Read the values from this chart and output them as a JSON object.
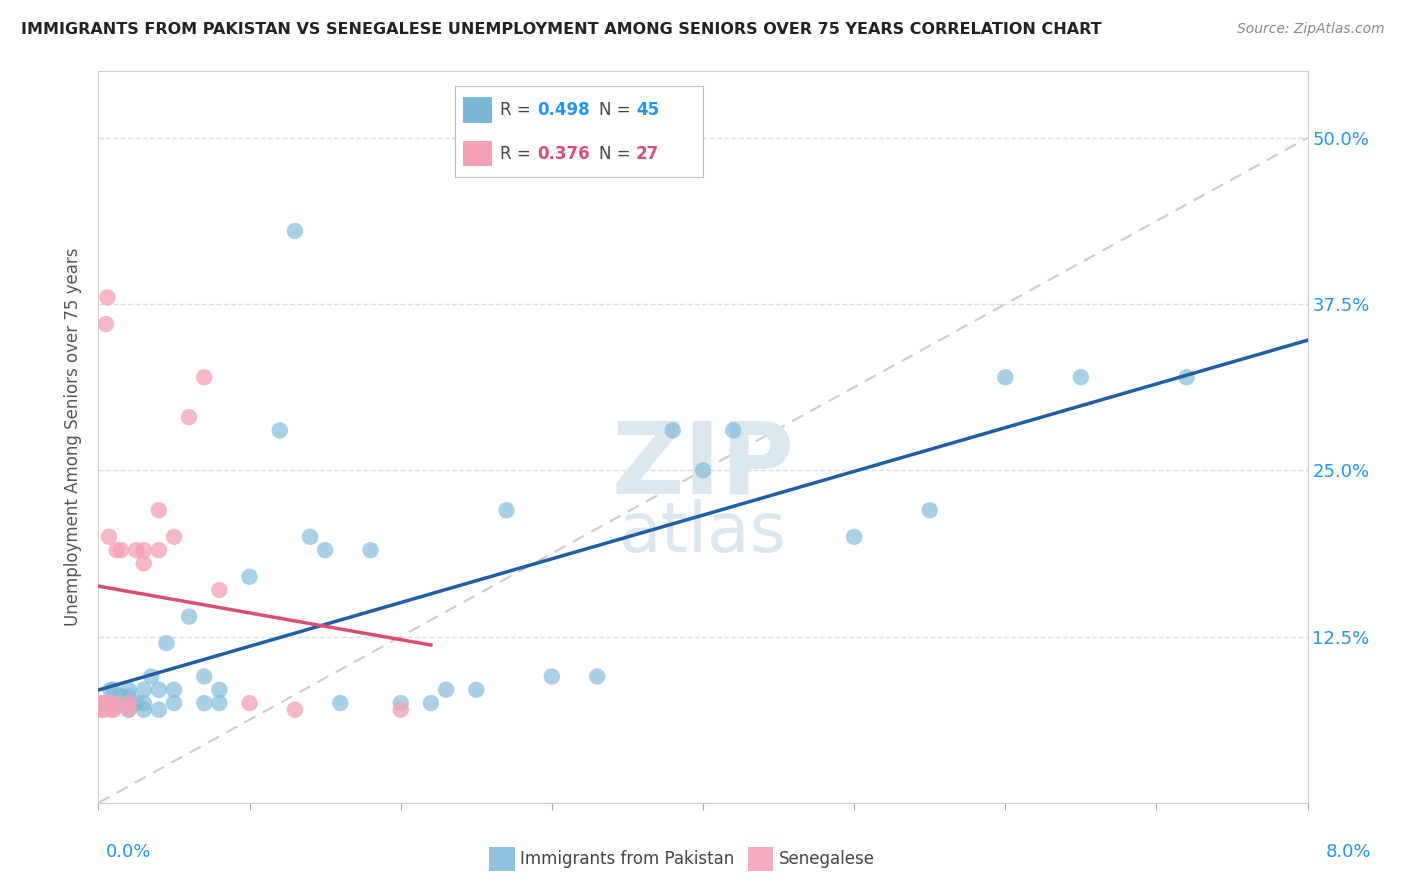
{
  "title": "IMMIGRANTS FROM PAKISTAN VS SENEGALESE UNEMPLOYMENT AMONG SENIORS OVER 75 YEARS CORRELATION CHART",
  "source": "Source: ZipAtlas.com",
  "ylabel": "Unemployment Among Seniors over 75 years",
  "xlim": [
    0.0,
    0.08
  ],
  "ylim": [
    0.0,
    0.55
  ],
  "yticks": [
    0.0,
    0.125,
    0.25,
    0.375,
    0.5
  ],
  "ytick_labels": [
    "",
    "12.5%",
    "25.0%",
    "37.5%",
    "50.0%"
  ],
  "blue_color": "#7ab8d9",
  "pink_color": "#f4a0b5",
  "blue_line_color": "#1f5fa6",
  "pink_line_color": "#d94f70",
  "diag_line_color": "#cccccc",
  "pakistan_x": [
    0.0005,
    0.0008,
    0.001,
    0.001,
    0.0015,
    0.002,
    0.002,
    0.002,
    0.0025,
    0.003,
    0.003,
    0.003,
    0.0035,
    0.004,
    0.004,
    0.0045,
    0.005,
    0.005,
    0.006,
    0.007,
    0.007,
    0.008,
    0.008,
    0.01,
    0.012,
    0.013,
    0.014,
    0.015,
    0.016,
    0.018,
    0.02,
    0.022,
    0.023,
    0.025,
    0.027,
    0.03,
    0.033,
    0.038,
    0.04,
    0.042,
    0.05,
    0.055,
    0.06,
    0.065,
    0.072
  ],
  "pakistan_y": [
    0.075,
    0.085,
    0.075,
    0.085,
    0.08,
    0.07,
    0.08,
    0.085,
    0.075,
    0.07,
    0.075,
    0.085,
    0.095,
    0.07,
    0.085,
    0.12,
    0.075,
    0.085,
    0.14,
    0.075,
    0.095,
    0.075,
    0.085,
    0.17,
    0.28,
    0.43,
    0.2,
    0.19,
    0.075,
    0.19,
    0.075,
    0.075,
    0.085,
    0.085,
    0.22,
    0.095,
    0.095,
    0.28,
    0.25,
    0.28,
    0.2,
    0.22,
    0.32,
    0.32,
    0.32
  ],
  "senegalese_x": [
    0.0001,
    0.0002,
    0.0003,
    0.0004,
    0.0005,
    0.0006,
    0.0007,
    0.0008,
    0.0009,
    0.001,
    0.001,
    0.0012,
    0.0015,
    0.002,
    0.002,
    0.0025,
    0.003,
    0.003,
    0.004,
    0.004,
    0.005,
    0.006,
    0.007,
    0.008,
    0.01,
    0.013,
    0.02
  ],
  "senegalese_y": [
    0.07,
    0.075,
    0.075,
    0.07,
    0.36,
    0.38,
    0.2,
    0.075,
    0.07,
    0.07,
    0.075,
    0.19,
    0.19,
    0.07,
    0.075,
    0.19,
    0.18,
    0.19,
    0.19,
    0.22,
    0.2,
    0.29,
    0.32,
    0.16,
    0.075,
    0.07,
    0.07
  ]
}
